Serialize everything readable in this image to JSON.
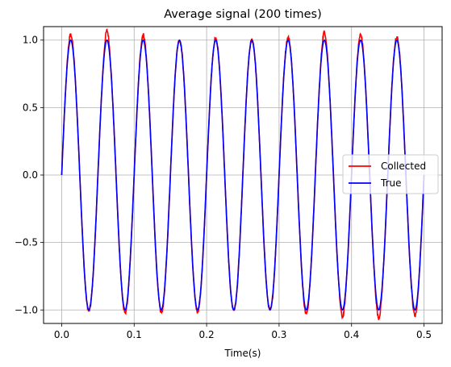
{
  "chart_data": {
    "type": "line",
    "title": "Average signal (200 times)",
    "xlabel": "Time(s)",
    "ylabel": "",
    "xlim": [
      -0.025,
      0.525
    ],
    "ylim": [
      -1.1,
      1.1
    ],
    "xticks": [
      0.0,
      0.1,
      0.2,
      0.3,
      0.4,
      0.5
    ],
    "xtick_labels": [
      "0.0",
      "0.1",
      "0.2",
      "0.3",
      "0.4",
      "0.5"
    ],
    "yticks": [
      -1.0,
      -0.5,
      0.0,
      0.5,
      1.0
    ],
    "ytick_labels": [
      "−1.0",
      "−0.5",
      "0.0",
      "0.5",
      "1.0"
    ],
    "grid": true,
    "legend_position": "center-right",
    "frequency_hz": 20,
    "x_range": [
      0.0,
      0.5
    ],
    "series": [
      {
        "name": "Collected",
        "color": "#ff0000",
        "description": "sin(2*pi*20*t) with small noise",
        "peaks": [
          1.04,
          1.07,
          1.04,
          1.0,
          1.01,
          1.0,
          1.02,
          1.06,
          1.04,
          1.02
        ],
        "troughs": [
          -1.01,
          -1.02,
          -1.02,
          -1.01,
          -1.0,
          -1.0,
          -1.03,
          -1.05,
          -1.06,
          -1.04
        ]
      },
      {
        "name": "True",
        "color": "#0000ff",
        "description": "sin(2*pi*20*t)"
      }
    ]
  }
}
